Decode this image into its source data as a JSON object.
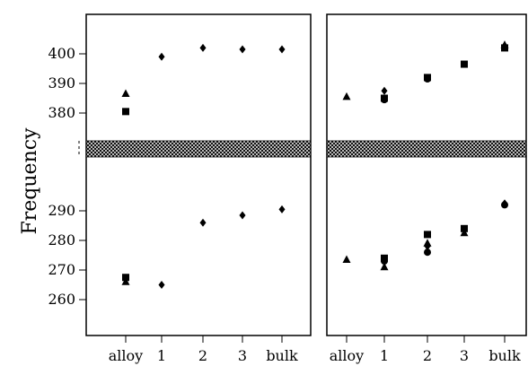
{
  "chart_data": {
    "type": "scatter",
    "ylabel": "Frequency",
    "y_ticks": [
      "260",
      "270",
      "280",
      "290",
      "380",
      "390",
      "400"
    ],
    "y_axis_break": "between 290 and 380 (hatched band)",
    "categories": [
      "alloy",
      "1",
      "2",
      "3",
      "bulk"
    ],
    "panels": [
      {
        "name": "left",
        "points": [
          {
            "x": "alloy",
            "y": 386.5,
            "marker": "triangle"
          },
          {
            "x": "alloy",
            "y": 380.5,
            "marker": "square"
          },
          {
            "x": "alloy",
            "y": 267.5,
            "marker": "square"
          },
          {
            "x": "alloy",
            "y": 266.0,
            "marker": "triangle"
          },
          {
            "x": "1",
            "y": 399.0,
            "marker": "diamond"
          },
          {
            "x": "1",
            "y": 265.0,
            "marker": "diamond"
          },
          {
            "x": "2",
            "y": 402.0,
            "marker": "diamond"
          },
          {
            "x": "2",
            "y": 286.0,
            "marker": "diamond"
          },
          {
            "x": "3",
            "y": 401.5,
            "marker": "diamond"
          },
          {
            "x": "3",
            "y": 288.5,
            "marker": "diamond"
          },
          {
            "x": "bulk",
            "y": 401.5,
            "marker": "diamond"
          },
          {
            "x": "bulk",
            "y": 290.5,
            "marker": "diamond"
          }
        ]
      },
      {
        "name": "right",
        "points": [
          {
            "x": "alloy",
            "y": 385.5,
            "marker": "triangle"
          },
          {
            "x": "alloy",
            "y": 273.5,
            "marker": "triangle"
          },
          {
            "x": "1",
            "y": 387.5,
            "marker": "diamond"
          },
          {
            "x": "1",
            "y": 385.0,
            "marker": "square"
          },
          {
            "x": "1",
            "y": 384.5,
            "marker": "circle"
          },
          {
            "x": "1",
            "y": 274.0,
            "marker": "square"
          },
          {
            "x": "1",
            "y": 273.0,
            "marker": "circle"
          },
          {
            "x": "1",
            "y": 271.0,
            "marker": "triangle"
          },
          {
            "x": "2",
            "y": 392.0,
            "marker": "square"
          },
          {
            "x": "2",
            "y": 391.5,
            "marker": "circle"
          },
          {
            "x": "2",
            "y": 282.0,
            "marker": "square"
          },
          {
            "x": "2",
            "y": 279.0,
            "marker": "triangle"
          },
          {
            "x": "2",
            "y": 278.0,
            "marker": "diamond"
          },
          {
            "x": "2",
            "y": 276.0,
            "marker": "circle"
          },
          {
            "x": "3",
            "y": 396.5,
            "marker": "square"
          },
          {
            "x": "3",
            "y": 284.0,
            "marker": "square"
          },
          {
            "x": "3",
            "y": 282.5,
            "marker": "triangle"
          },
          {
            "x": "bulk",
            "y": 403.0,
            "marker": "triangle"
          },
          {
            "x": "bulk",
            "y": 402.0,
            "marker": "square"
          },
          {
            "x": "bulk",
            "y": 292.5,
            "marker": "diamond"
          },
          {
            "x": "bulk",
            "y": 292.0,
            "marker": "circle"
          }
        ]
      }
    ],
    "grid": false,
    "legend": "none"
  }
}
